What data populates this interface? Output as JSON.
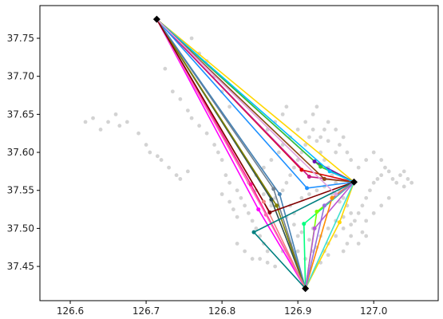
{
  "chart_data": {
    "type": "scatter",
    "title": "",
    "xlabel": "",
    "ylabel": "",
    "xlim": [
      126.56,
      127.085
    ],
    "ylim": [
      37.405,
      37.793
    ],
    "xticks": [
      126.6,
      126.7,
      126.8,
      126.9,
      127.0
    ],
    "xtick_labels": [
      "126.6",
      "126.7",
      "126.8",
      "126.9",
      "127.0"
    ],
    "yticks": [
      37.45,
      37.5,
      37.55,
      37.6,
      37.65,
      37.7,
      37.75
    ],
    "ytick_labels": [
      "37.45",
      "37.50",
      "37.55",
      "37.60",
      "37.65",
      "37.70",
      "37.75"
    ],
    "grid": false,
    "legend": "none",
    "background_points_color": "#d3d3d3",
    "background_points": [
      [
        126.62,
        37.64
      ],
      [
        126.63,
        37.645
      ],
      [
        126.64,
        37.63
      ],
      [
        126.65,
        37.64
      ],
      [
        126.66,
        37.65
      ],
      [
        126.665,
        37.635
      ],
      [
        126.675,
        37.64
      ],
      [
        126.69,
        37.625
      ],
      [
        126.7,
        37.61
      ],
      [
        126.705,
        37.6
      ],
      [
        126.715,
        37.595
      ],
      [
        126.725,
        37.71
      ],
      [
        126.735,
        37.68
      ],
      [
        126.745,
        37.67
      ],
      [
        126.755,
        37.655
      ],
      [
        126.76,
        37.645
      ],
      [
        126.77,
        37.635
      ],
      [
        126.78,
        37.625
      ],
      [
        126.79,
        37.61
      ],
      [
        126.795,
        37.6
      ],
      [
        126.8,
        37.59
      ],
      [
        126.805,
        37.57
      ],
      [
        126.81,
        37.56
      ],
      [
        126.82,
        37.55
      ],
      [
        126.825,
        37.54
      ],
      [
        126.83,
        37.53
      ],
      [
        126.835,
        37.52
      ],
      [
        126.84,
        37.51
      ],
      [
        126.845,
        37.5
      ],
      [
        126.85,
        37.49
      ],
      [
        126.855,
        37.48
      ],
      [
        126.86,
        37.47
      ],
      [
        126.865,
        37.53
      ],
      [
        126.87,
        37.54
      ],
      [
        126.88,
        37.55
      ],
      [
        126.885,
        37.56
      ],
      [
        126.89,
        37.57
      ],
      [
        126.895,
        37.58
      ],
      [
        126.9,
        37.59
      ],
      [
        126.905,
        37.6
      ],
      [
        126.91,
        37.61
      ],
      [
        126.915,
        37.62
      ],
      [
        126.92,
        37.63
      ],
      [
        126.925,
        37.615
      ],
      [
        126.93,
        37.6
      ],
      [
        126.935,
        37.59
      ],
      [
        126.94,
        37.58
      ],
      [
        126.945,
        37.57
      ],
      [
        126.95,
        37.56
      ],
      [
        126.955,
        37.55
      ],
      [
        126.96,
        37.54
      ],
      [
        126.965,
        37.53
      ],
      [
        126.97,
        37.52
      ],
      [
        126.975,
        37.51
      ],
      [
        126.98,
        37.52
      ],
      [
        126.985,
        37.53
      ],
      [
        126.99,
        37.54
      ],
      [
        126.995,
        37.55
      ],
      [
        127.0,
        37.56
      ],
      [
        127.005,
        37.565
      ],
      [
        127.01,
        37.57
      ],
      [
        127.015,
        37.58
      ],
      [
        127.02,
        37.575
      ],
      [
        127.025,
        37.565
      ],
      [
        127.03,
        37.56
      ],
      [
        127.035,
        37.57
      ],
      [
        127.04,
        37.575
      ],
      [
        127.045,
        37.565
      ],
      [
        126.88,
        37.65
      ],
      [
        126.885,
        37.66
      ],
      [
        126.87,
        37.64
      ],
      [
        126.86,
        37.63
      ],
      [
        126.93,
        37.62
      ],
      [
        126.935,
        37.63
      ],
      [
        126.94,
        37.615
      ],
      [
        126.95,
        37.6
      ],
      [
        126.955,
        37.61
      ],
      [
        126.96,
        37.62
      ],
      [
        126.965,
        37.6
      ],
      [
        126.97,
        37.59
      ],
      [
        126.82,
        37.48
      ],
      [
        126.83,
        37.47
      ],
      [
        126.84,
        37.46
      ],
      [
        126.85,
        37.46
      ],
      [
        126.86,
        37.455
      ],
      [
        126.87,
        37.45
      ],
      [
        126.88,
        37.47
      ],
      [
        126.89,
        37.48
      ],
      [
        126.9,
        37.49
      ],
      [
        126.92,
        37.5
      ],
      [
        126.93,
        37.49
      ],
      [
        126.94,
        37.48
      ],
      [
        126.95,
        37.49
      ],
      [
        126.96,
        37.5
      ],
      [
        126.97,
        37.49
      ],
      [
        126.98,
        37.48
      ],
      [
        126.99,
        37.49
      ],
      [
        126.76,
        37.75
      ],
      [
        126.77,
        37.73
      ],
      [
        126.78,
        37.72
      ],
      [
        126.79,
        37.7
      ],
      [
        126.8,
        37.68
      ],
      [
        126.81,
        37.66
      ],
      [
        126.72,
        37.59
      ],
      [
        126.73,
        37.58
      ],
      [
        126.74,
        37.57
      ],
      [
        126.745,
        37.565
      ],
      [
        126.755,
        37.575
      ],
      [
        126.8,
        37.545
      ],
      [
        126.81,
        37.535
      ],
      [
        126.815,
        37.525
      ],
      [
        126.82,
        37.515
      ],
      [
        126.89,
        37.53
      ],
      [
        126.895,
        37.52
      ],
      [
        126.905,
        37.54
      ],
      [
        126.915,
        37.545
      ],
      [
        126.925,
        37.55
      ],
      [
        126.935,
        37.555
      ],
      [
        126.945,
        37.545
      ],
      [
        126.955,
        37.535
      ],
      [
        126.9,
        37.47
      ],
      [
        126.91,
        37.46
      ],
      [
        126.92,
        37.47
      ],
      [
        126.93,
        37.455
      ],
      [
        126.94,
        37.465
      ],
      [
        126.96,
        37.47
      ],
      [
        126.965,
        37.48
      ],
      [
        126.99,
        37.51
      ],
      [
        127.0,
        37.52
      ],
      [
        127.01,
        37.53
      ],
      [
        127.02,
        37.54
      ],
      [
        127.04,
        37.555
      ],
      [
        127.05,
        37.56
      ],
      [
        126.98,
        37.58
      ],
      [
        126.99,
        37.59
      ],
      [
        127.0,
        37.6
      ],
      [
        127.01,
        37.59
      ],
      [
        126.845,
        37.57
      ],
      [
        126.855,
        37.58
      ],
      [
        126.865,
        37.59
      ],
      [
        126.875,
        37.6
      ],
      [
        126.88,
        37.61
      ],
      [
        126.89,
        37.62
      ],
      [
        126.9,
        37.63
      ],
      [
        126.91,
        37.64
      ],
      [
        126.92,
        37.65
      ],
      [
        126.925,
        37.66
      ],
      [
        126.94,
        37.64
      ],
      [
        126.95,
        37.63
      ],
      [
        126.835,
        37.56
      ],
      [
        126.845,
        37.55
      ],
      [
        126.855,
        37.545
      ],
      [
        126.865,
        37.535
      ],
      [
        126.875,
        37.525
      ],
      [
        126.885,
        37.515
      ],
      [
        126.895,
        37.505
      ],
      [
        126.905,
        37.495
      ],
      [
        126.915,
        37.485
      ],
      [
        126.925,
        37.475
      ],
      [
        126.935,
        37.47
      ],
      [
        126.94,
        37.5
      ],
      [
        126.95,
        37.51
      ],
      [
        126.96,
        37.515
      ],
      [
        126.97,
        37.505
      ],
      [
        126.985,
        37.495
      ]
    ],
    "depots": [
      [
        126.714,
        37.775
      ],
      [
        126.974,
        37.561
      ],
      [
        126.91,
        37.421
      ]
    ],
    "routes": [
      {
        "color": "#ffd700",
        "points": [
          [
            126.714,
            37.775
          ],
          [
            126.974,
            37.561
          ]
        ]
      },
      {
        "color": "#6a0dad",
        "points": [
          [
            126.714,
            37.775
          ],
          [
            126.922,
            37.588
          ],
          [
            126.974,
            37.561
          ]
        ]
      },
      {
        "color": "#e00000",
        "points": [
          [
            126.714,
            37.775
          ],
          [
            126.905,
            37.577
          ],
          [
            126.974,
            37.561
          ]
        ]
      },
      {
        "color": "#c71585",
        "points": [
          [
            126.714,
            37.775
          ],
          [
            126.915,
            37.568
          ],
          [
            126.974,
            37.561
          ]
        ]
      },
      {
        "color": "#32cd32",
        "points": [
          [
            126.714,
            37.775
          ],
          [
            126.93,
            37.581
          ],
          [
            126.974,
            37.561
          ]
        ]
      },
      {
        "color": "#00bfff",
        "points": [
          [
            126.714,
            37.775
          ],
          [
            126.942,
            37.575
          ],
          [
            126.974,
            37.561
          ]
        ]
      },
      {
        "color": "#8b4513",
        "points": [
          [
            126.714,
            37.775
          ],
          [
            126.935,
            37.565
          ],
          [
            126.974,
            37.561
          ]
        ]
      },
      {
        "color": "#1e90ff",
        "points": [
          [
            126.714,
            37.775
          ],
          [
            126.912,
            37.553
          ],
          [
            126.974,
            37.561
          ]
        ]
      },
      {
        "color": "#708090",
        "points": [
          [
            126.714,
            37.775
          ],
          [
            126.868,
            37.552
          ],
          [
            126.91,
            37.421
          ]
        ]
      },
      {
        "color": "#2f4f4f",
        "points": [
          [
            126.714,
            37.775
          ],
          [
            126.865,
            37.538
          ],
          [
            126.91,
            37.421
          ]
        ]
      },
      {
        "color": "#ff1493",
        "points": [
          [
            126.714,
            37.775
          ],
          [
            126.838,
            37.558
          ],
          [
            126.91,
            37.421
          ]
        ]
      },
      {
        "color": "#ff00ff",
        "points": [
          [
            126.714,
            37.775
          ],
          [
            126.848,
            37.525
          ],
          [
            126.91,
            37.421
          ]
        ]
      },
      {
        "color": "#ff69b4",
        "points": [
          [
            126.714,
            37.775
          ],
          [
            126.858,
            37.518
          ],
          [
            126.91,
            37.421
          ]
        ]
      },
      {
        "color": "#808000",
        "points": [
          [
            126.714,
            37.775
          ],
          [
            126.872,
            37.53
          ],
          [
            126.91,
            37.421
          ]
        ]
      },
      {
        "color": "#4682b4",
        "points": [
          [
            126.714,
            37.775
          ],
          [
            126.876,
            37.545
          ],
          [
            126.91,
            37.421
          ]
        ]
      },
      {
        "color": "#f08080",
        "points": [
          [
            126.714,
            37.775
          ],
          [
            126.855,
            37.535
          ],
          [
            126.91,
            37.421
          ]
        ]
      },
      {
        "color": "#800000",
        "points": [
          [
            126.714,
            37.775
          ],
          [
            126.863,
            37.521
          ],
          [
            126.974,
            37.561
          ]
        ]
      },
      {
        "color": "#dda0dd",
        "points": [
          [
            126.714,
            37.775
          ],
          [
            126.95,
            37.545
          ],
          [
            126.974,
            37.561
          ]
        ]
      },
      {
        "color": "#008080",
        "points": [
          [
            126.91,
            37.421
          ],
          [
            126.842,
            37.495
          ],
          [
            126.974,
            37.561
          ]
        ]
      },
      {
        "color": "#00ff7f",
        "points": [
          [
            126.91,
            37.421
          ],
          [
            126.908,
            37.506
          ],
          [
            126.974,
            37.561
          ]
        ]
      },
      {
        "color": "#7fff00",
        "points": [
          [
            126.91,
            37.421
          ],
          [
            126.925,
            37.522
          ],
          [
            126.974,
            37.561
          ]
        ]
      },
      {
        "color": "#ba55d3",
        "points": [
          [
            126.91,
            37.421
          ],
          [
            126.922,
            37.5
          ],
          [
            126.974,
            37.561
          ]
        ]
      },
      {
        "color": "#ffd700",
        "points": [
          [
            126.91,
            37.421
          ],
          [
            126.955,
            37.508
          ],
          [
            126.974,
            37.561
          ]
        ]
      },
      {
        "color": "#40e0d0",
        "points": [
          [
            126.91,
            37.421
          ],
          [
            126.974,
            37.561
          ]
        ]
      },
      {
        "color": "#ff8c00",
        "points": [
          [
            126.91,
            37.421
          ],
          [
            126.945,
            37.54
          ],
          [
            126.974,
            37.561
          ]
        ]
      },
      {
        "color": "#9370db",
        "points": [
          [
            126.91,
            37.421
          ],
          [
            126.935,
            37.53
          ],
          [
            126.974,
            37.561
          ]
        ]
      }
    ]
  }
}
